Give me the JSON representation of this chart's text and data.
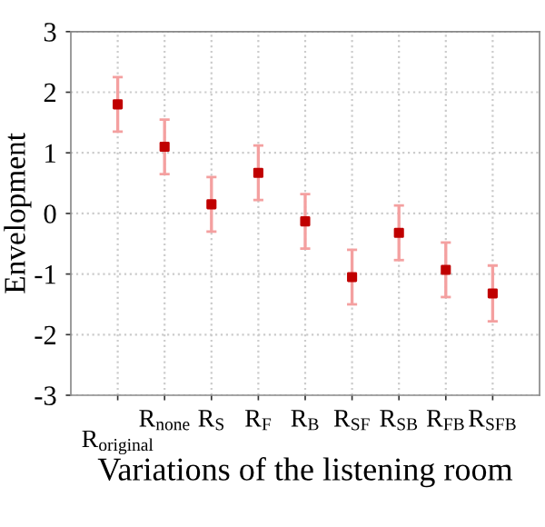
{
  "chart_data": {
    "type": "scatter",
    "xlabel": "Variations of the listening room",
    "ylabel": "Envelopment",
    "categories": [
      "R$_{original}$",
      "R$_{none}$",
      "R$_{S}$",
      "R$_{F}$",
      "R$_{B}$",
      "R$_{SF}$",
      "R$_{SB}$",
      "R$_{FB}$",
      "R$_{SFB}$"
    ],
    "series": [
      {
        "color": "#c00000",
        "values": [
          1.8,
          1.1,
          0.15,
          0.67,
          -0.13,
          -1.05,
          -0.32,
          -0.93,
          -1.32
        ],
        "errors": [
          0.45,
          0.45,
          0.45,
          0.45,
          0.45,
          0.45,
          0.45,
          0.45,
          0.46
        ]
      }
    ],
    "ylim": [
      -3,
      3
    ],
    "yticks": [
      -3,
      -2,
      -1,
      0,
      1,
      2,
      3
    ],
    "grid": true,
    "marker": "square"
  }
}
